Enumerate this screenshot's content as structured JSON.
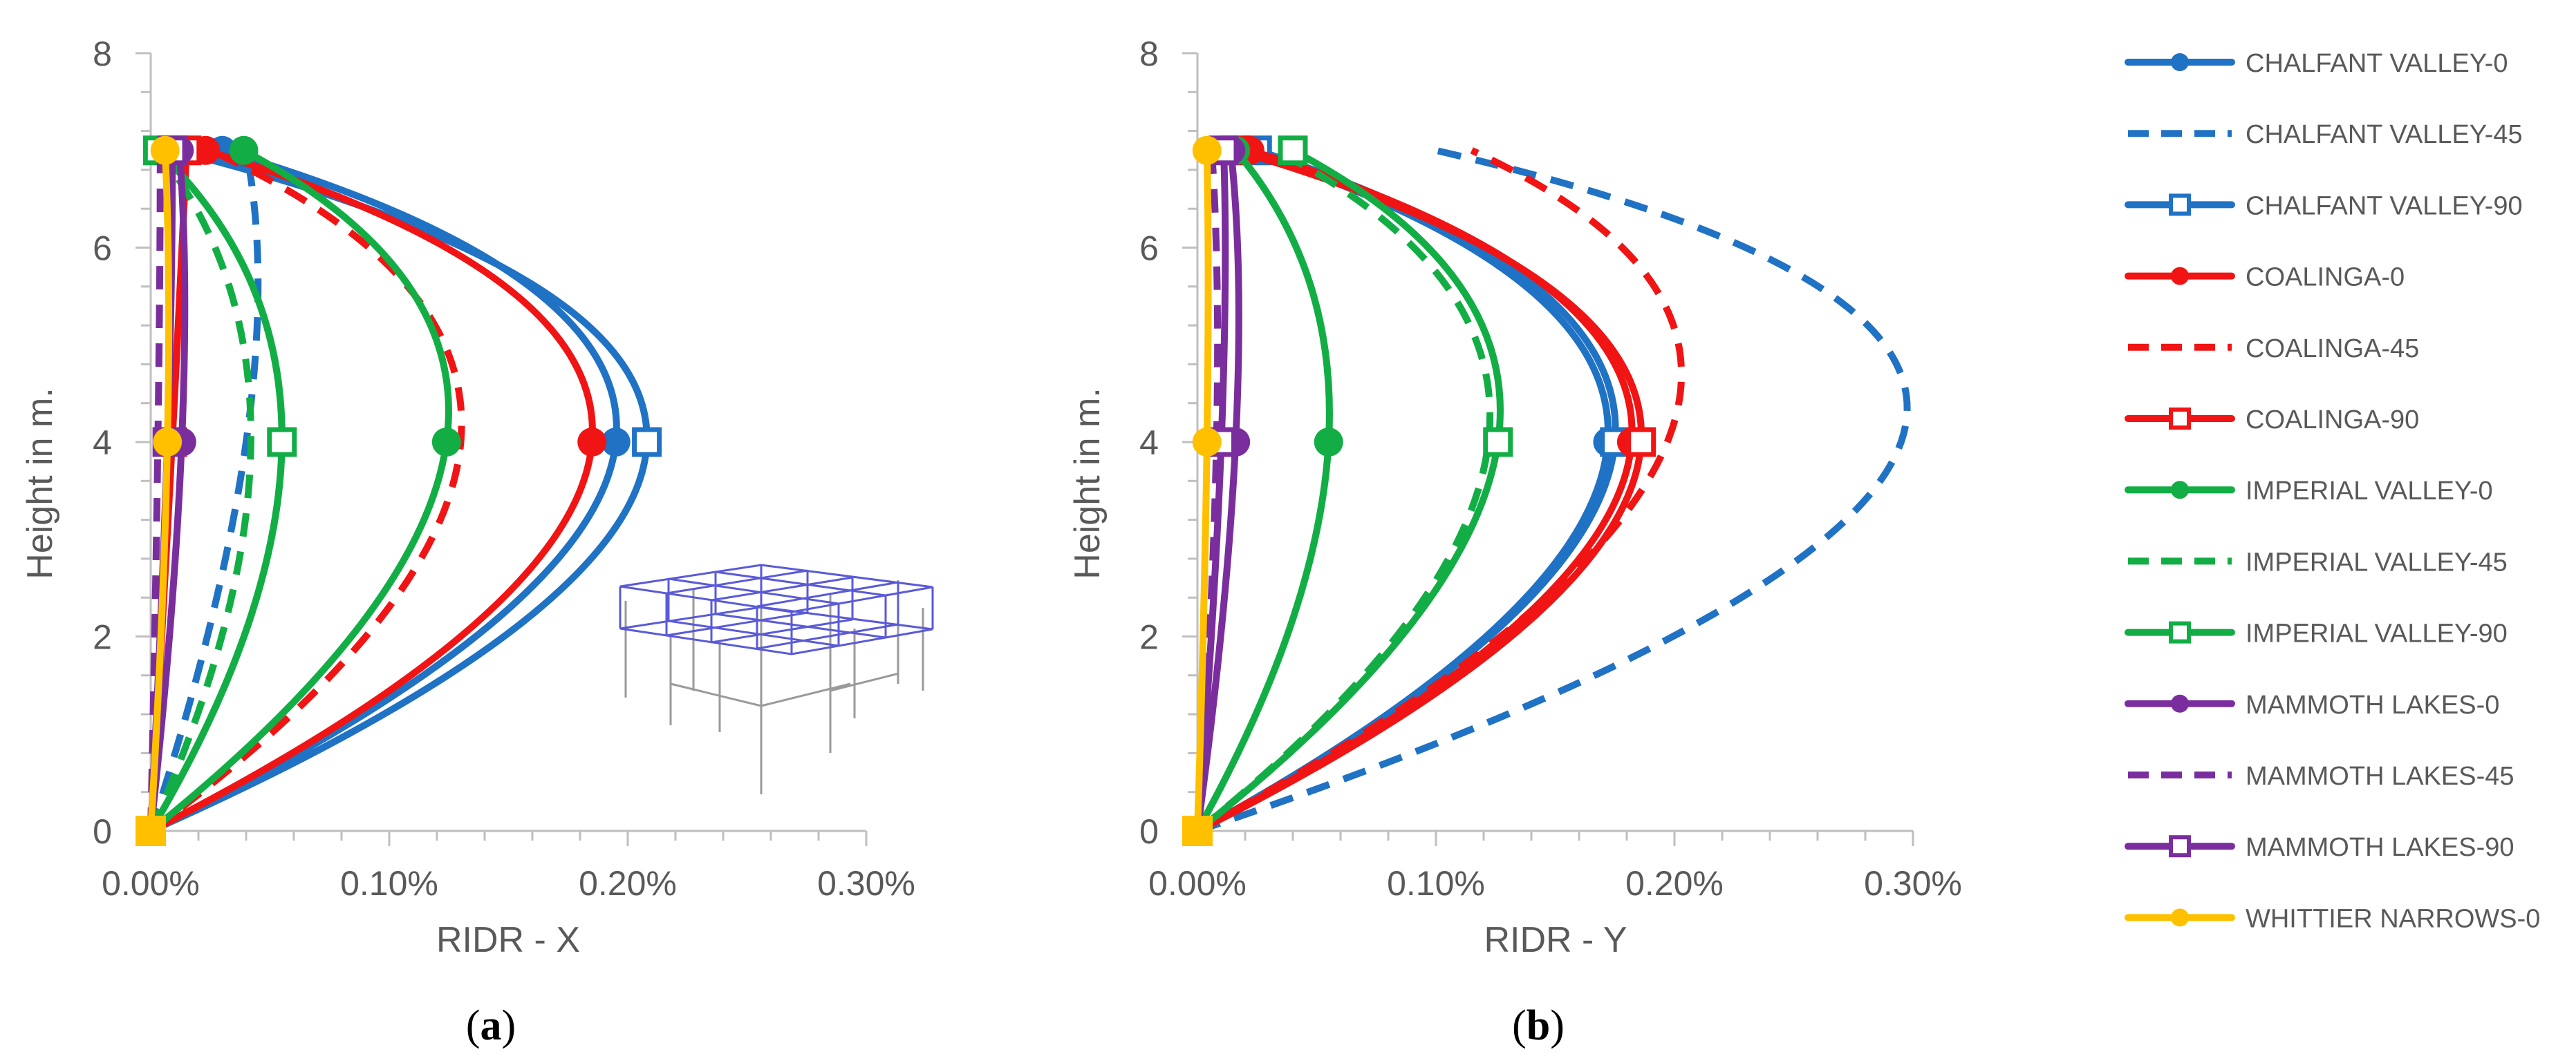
{
  "chart_data": [
    {
      "id": "a",
      "type": "line",
      "caption": "a",
      "xlabel": "RIDR - X",
      "ylabel": "Height in m.",
      "x_ticks": [
        "0.00%",
        "0.10%",
        "0.20%",
        "0.30%"
      ],
      "y_ticks": [
        "0",
        "2",
        "4",
        "6",
        "8"
      ],
      "xlim": [
        0,
        0.3
      ],
      "ylim": [
        0,
        8
      ],
      "grid": false,
      "heights": [
        0,
        4,
        7
      ],
      "series": [
        {
          "name": "CHALFANT VALLEY-0",
          "values": [
            0,
            0.195,
            0.03
          ]
        },
        {
          "name": "CHALFANT VALLEY-45",
          "values": [
            0,
            0.04,
            0.04
          ]
        },
        {
          "name": "CHALFANT VALLEY-90",
          "values": [
            0,
            0.208,
            0.01
          ]
        },
        {
          "name": "COALINGA-0",
          "values": [
            0,
            0.185,
            0.023
          ]
        },
        {
          "name": "COALINGA-45",
          "values": [
            0,
            0.13,
            0.025
          ]
        },
        {
          "name": "COALINGA-90",
          "values": [
            0,
            0.009,
            0.015
          ]
        },
        {
          "name": "IMPERIAL VALLEY-0",
          "values": [
            0,
            0.124,
            0.039
          ]
        },
        {
          "name": "IMPERIAL VALLEY-45",
          "values": [
            0,
            0.042,
            0.003
          ]
        },
        {
          "name": "IMPERIAL VALLEY-90",
          "values": [
            0,
            0.055,
            0.003
          ]
        },
        {
          "name": "MAMMOTH LAKES-0",
          "values": [
            0,
            0.013,
            0.012
          ]
        },
        {
          "name": "MAMMOTH LAKES-45",
          "values": [
            0,
            0.003,
            0.004
          ]
        },
        {
          "name": "MAMMOTH LAKES-90",
          "values": [
            0,
            0.007,
            0.009
          ]
        },
        {
          "name": "WHITTIER NARROWS-0",
          "values": [
            0,
            0.007,
            0.006
          ]
        }
      ]
    },
    {
      "id": "b",
      "type": "line",
      "caption": "b",
      "xlabel": "RIDR - Y",
      "ylabel": "Height in m.",
      "x_ticks": [
        "0.00%",
        "0.10%",
        "0.20%",
        "0.30%"
      ],
      "y_ticks": [
        "0",
        "2",
        "4",
        "6",
        "8"
      ],
      "xlim": [
        0,
        0.3
      ],
      "ylim": [
        0,
        8
      ],
      "grid": false,
      "heights": [
        0,
        4,
        7
      ],
      "series": [
        {
          "name": "CHALFANT VALLEY-0",
          "values": [
            0,
            0.172,
            0.02
          ]
        },
        {
          "name": "CHALFANT VALLEY-45",
          "values": [
            0,
            0.295,
            0.1
          ]
        },
        {
          "name": "CHALFANT VALLEY-90",
          "values": [
            0,
            0.175,
            0.025
          ]
        },
        {
          "name": "COALINGA-0",
          "values": [
            0,
            0.182,
            0.022
          ]
        },
        {
          "name": "COALINGA-45",
          "values": [
            0,
            0.197,
            0.115
          ]
        },
        {
          "name": "COALINGA-90",
          "values": [
            0,
            0.186,
            0.016
          ]
        },
        {
          "name": "IMPERIAL VALLEY-0",
          "values": [
            0,
            0.055,
            0.016
          ]
        },
        {
          "name": "IMPERIAL VALLEY-45",
          "values": [
            0,
            0.122,
            0.033
          ]
        },
        {
          "name": "IMPERIAL VALLEY-90",
          "values": [
            0,
            0.126,
            0.04
          ]
        },
        {
          "name": "MAMMOTH LAKES-0",
          "values": [
            0,
            0.016,
            0.014
          ]
        },
        {
          "name": "MAMMOTH LAKES-45",
          "values": [
            0,
            0.008,
            0.006
          ]
        },
        {
          "name": "MAMMOTH LAKES-90",
          "values": [
            0,
            0.01,
            0.011
          ]
        },
        {
          "name": "WHITTIER NARROWS-0",
          "values": [
            0,
            0.004,
            0.004
          ]
        }
      ]
    }
  ],
  "legend": [
    {
      "name": "CHALFANT VALLEY-0",
      "color": "#1F72C4",
      "dash": "solid",
      "marker": "dot"
    },
    {
      "name": "CHALFANT VALLEY-45",
      "color": "#1F72C4",
      "dash": "dashed",
      "marker": "none"
    },
    {
      "name": "CHALFANT VALLEY-90",
      "color": "#1F72C4",
      "dash": "solid",
      "marker": "square"
    },
    {
      "name": "COALINGA-0",
      "color": "#F01414",
      "dash": "solid",
      "marker": "dot"
    },
    {
      "name": "COALINGA-45",
      "color": "#F01414",
      "dash": "dashed",
      "marker": "none"
    },
    {
      "name": "COALINGA-90",
      "color": "#F01414",
      "dash": "solid",
      "marker": "square"
    },
    {
      "name": "IMPERIAL VALLEY-0",
      "color": "#12AE45",
      "dash": "solid",
      "marker": "dot"
    },
    {
      "name": "IMPERIAL VALLEY-45",
      "color": "#12AE45",
      "dash": "dashed",
      "marker": "none"
    },
    {
      "name": "IMPERIAL VALLEY-90",
      "color": "#12AE45",
      "dash": "solid",
      "marker": "square"
    },
    {
      "name": "MAMMOTH LAKES-0",
      "color": "#7A2E9E",
      "dash": "solid",
      "marker": "dot"
    },
    {
      "name": "MAMMOTH LAKES-45",
      "color": "#7A2E9E",
      "dash": "dashed",
      "marker": "none"
    },
    {
      "name": "MAMMOTH LAKES-90",
      "color": "#7A2E9E",
      "dash": "solid",
      "marker": "square"
    },
    {
      "name": "WHITTIER NARROWS-0",
      "color": "#FFC000",
      "dash": "solid",
      "marker": "dot"
    }
  ],
  "axis_color": "#BFBFBF",
  "text_color": "#595959"
}
